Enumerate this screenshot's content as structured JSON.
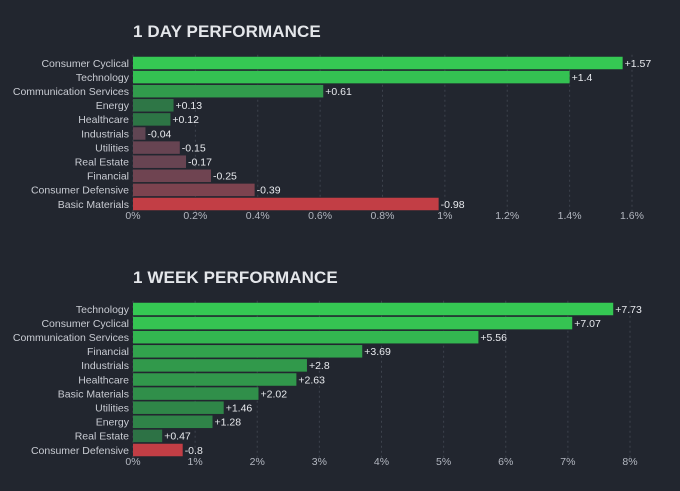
{
  "chart_data": [
    {
      "type": "bar",
      "orientation": "horizontal",
      "title": "1 DAY PERFORMANCE",
      "categories": [
        "Consumer Cyclical",
        "Technology",
        "Communication Services",
        "Energy",
        "Healthcare",
        "Industrials",
        "Utilities",
        "Real Estate",
        "Financial",
        "Consumer Defensive",
        "Basic Materials"
      ],
      "values": [
        1.57,
        1.4,
        0.61,
        0.13,
        0.12,
        -0.04,
        -0.15,
        -0.17,
        -0.25,
        -0.39,
        -0.98
      ],
      "value_labels": [
        "+1.57",
        "+1.4",
        "+0.61",
        "+0.13",
        "+0.12",
        "-0.04",
        "-0.15",
        "-0.17",
        "-0.25",
        "-0.39",
        "-0.98"
      ],
      "xlim": [
        0,
        1.6
      ],
      "xticks": [
        0,
        0.2,
        0.4,
        0.6,
        0.8,
        1,
        1.2,
        1.4,
        1.6
      ],
      "xtick_labels": [
        "0%",
        "0.2%",
        "0.4%",
        "0.6%",
        "0.8%",
        "1%",
        "1.2%",
        "1.4%",
        "1.6%"
      ],
      "bar_length": "absolute value",
      "grid": true
    },
    {
      "type": "bar",
      "orientation": "horizontal",
      "title": "1 WEEK PERFORMANCE",
      "categories": [
        "Technology",
        "Consumer Cyclical",
        "Communication Services",
        "Financial",
        "Industrials",
        "Healthcare",
        "Basic Materials",
        "Utilities",
        "Energy",
        "Real Estate",
        "Consumer Defensive"
      ],
      "values": [
        7.73,
        7.07,
        5.56,
        3.69,
        2.8,
        2.63,
        2.02,
        1.46,
        1.28,
        0.47,
        -0.8
      ],
      "value_labels": [
        "+7.73",
        "+7.07",
        "+5.56",
        "+3.69",
        "+2.8",
        "+2.63",
        "+2.02",
        "+1.46",
        "+1.28",
        "+0.47",
        "-0.8"
      ],
      "xlim": [
        0,
        8
      ],
      "xticks": [
        0,
        1,
        2,
        3,
        4,
        5,
        6,
        7,
        8
      ],
      "xtick_labels": [
        "0%",
        "1%",
        "2%",
        "3%",
        "4%",
        "5%",
        "6%",
        "7%",
        "8%"
      ],
      "bar_length": "absolute value",
      "grid": true
    }
  ],
  "colors": {
    "background": "#22262f",
    "grid": "#3d424d",
    "positive_strong": "#35c853",
    "positive_weak": "#2b5a41",
    "negative_weak": "#5e4553",
    "negative_strong": "#c23e45",
    "text": "#c9ccd3",
    "title": "#e4e6ea"
  }
}
